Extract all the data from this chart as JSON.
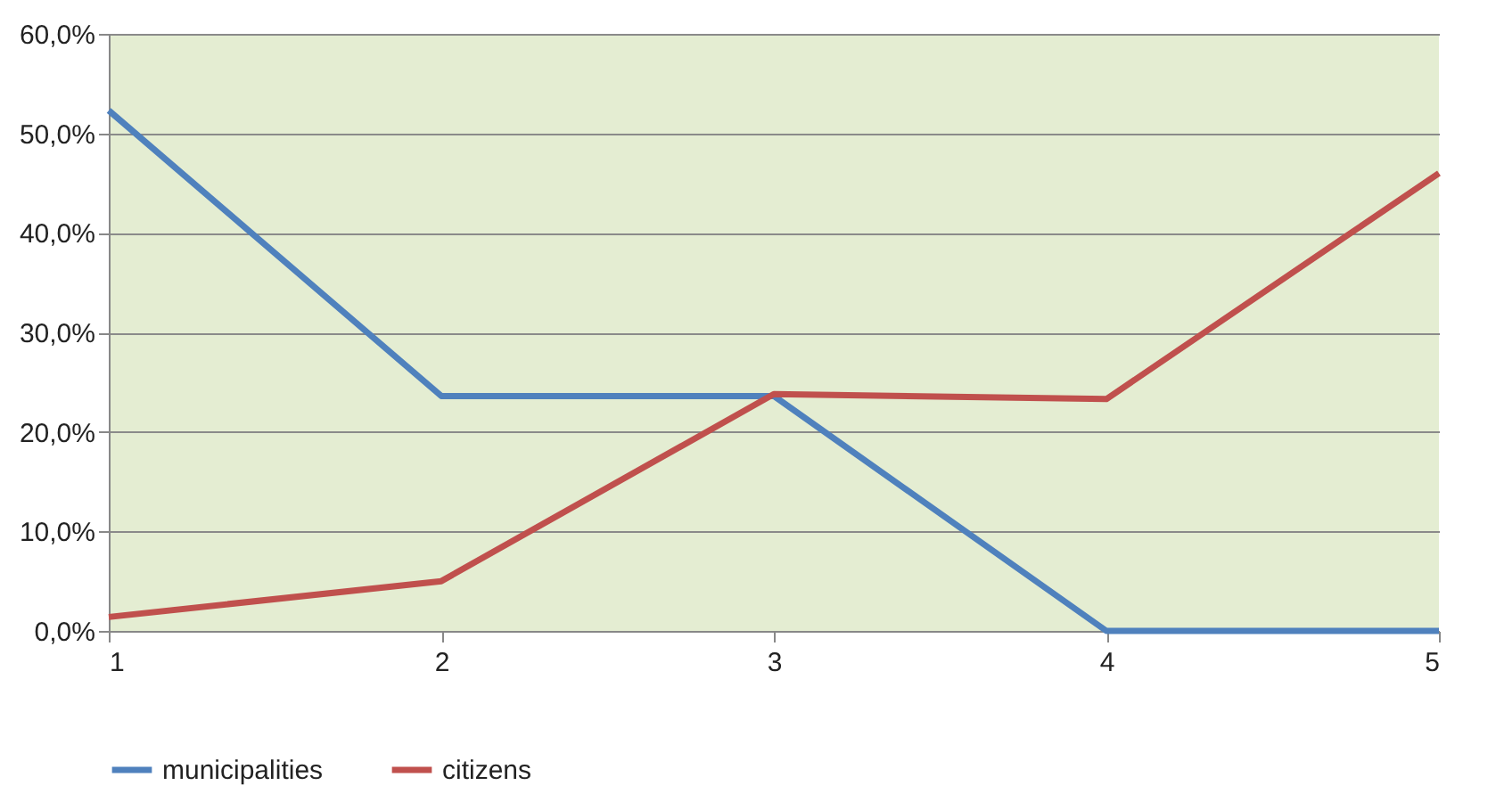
{
  "chart_data": {
    "type": "line",
    "x": [
      1,
      2,
      3,
      4,
      5
    ],
    "series": [
      {
        "name": "municipalities",
        "color": "#4f81bd",
        "values": [
          52.3,
          23.6,
          23.6,
          0,
          0
        ]
      },
      {
        "name": "citizens",
        "color": "#c0504d",
        "values": [
          1.4,
          5.0,
          23.8,
          23.3,
          46.0
        ]
      }
    ],
    "xlim": [
      1,
      5
    ],
    "xticks": [
      1,
      2,
      3,
      4,
      5
    ],
    "ylim": [
      0,
      60
    ],
    "yticks": [
      {
        "value": 0,
        "label": "0,0%"
      },
      {
        "value": 10,
        "label": "10,0%"
      },
      {
        "value": 20,
        "label": "20,0%"
      },
      {
        "value": 30,
        "label": "30,0%"
      },
      {
        "value": 40,
        "label": "40,0%"
      },
      {
        "value": 50,
        "label": "50,0%"
      },
      {
        "value": 60,
        "label": "60,0%"
      }
    ],
    "grid": "y",
    "legend": "bottom",
    "marker": "none",
    "line_style": "solid"
  }
}
